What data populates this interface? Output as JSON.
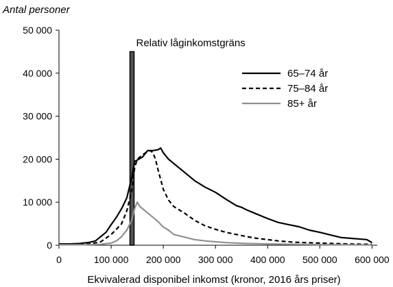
{
  "chart_data": {
    "type": "line",
    "title": "",
    "ylabel": "Antal personer",
    "xlabel": "Ekvivalerad disponibel inkomst (kronor, 2016 års priser)",
    "xlim": [
      0,
      610000
    ],
    "ylim": [
      0,
      50000
    ],
    "x_ticks": [
      0,
      100000,
      200000,
      300000,
      400000,
      500000,
      600000
    ],
    "x_tick_labels": [
      "0",
      "100 000",
      "200 000",
      "300 000",
      "400 000",
      "500 000",
      "600 000"
    ],
    "y_ticks": [
      0,
      10000,
      20000,
      30000,
      40000,
      50000
    ],
    "y_tick_labels": [
      "0",
      "10 000",
      "20 000",
      "30 000",
      "40 000",
      "50 000"
    ],
    "grid": false,
    "legend_position": "top-right",
    "annotation": {
      "label": "Relativ låginkomstgräns",
      "x": 140000,
      "bar_top": 45000
    },
    "series": [
      {
        "name": "65–74 år",
        "color": "#000000",
        "dash": "solid",
        "x": [
          0,
          20000,
          40000,
          60000,
          70000,
          80000,
          90000,
          100000,
          110000,
          120000,
          130000,
          135000,
          140000,
          145000,
          150000,
          160000,
          170000,
          175000,
          180000,
          190000,
          195000,
          200000,
          210000,
          220000,
          240000,
          260000,
          280000,
          300000,
          320000,
          340000,
          350000,
          360000,
          380000,
          400000,
          420000,
          440000,
          460000,
          480000,
          500000,
          520000,
          540000,
          560000,
          580000,
          590000,
          600000
        ],
        "y": [
          300,
          300,
          400,
          700,
          1000,
          2000,
          3000,
          4800,
          6500,
          8500,
          11000,
          13500,
          16000,
          19500,
          19800,
          20500,
          22000,
          22000,
          22000,
          22200,
          22600,
          21500,
          20000,
          19000,
          17000,
          15000,
          13500,
          12300,
          10700,
          9200,
          8800,
          8200,
          7200,
          6200,
          5300,
          4800,
          4300,
          3500,
          3000,
          2400,
          1800,
          1600,
          1400,
          1300,
          600
        ]
      },
      {
        "name": "75–84 år",
        "color": "#000000",
        "dash": "dashed",
        "x": [
          0,
          20000,
          40000,
          60000,
          80000,
          100000,
          110000,
          120000,
          130000,
          140000,
          145000,
          150000,
          160000,
          170000,
          175000,
          180000,
          185000,
          190000,
          200000,
          210000,
          220000,
          240000,
          260000,
          280000,
          300000,
          320000,
          340000,
          360000,
          380000,
          400000,
          420000,
          450000,
          500000,
          550000,
          600000
        ],
        "y": [
          100,
          100,
          200,
          300,
          800,
          2500,
          3700,
          5000,
          8000,
          13000,
          18000,
          20000,
          21000,
          21800,
          22000,
          21500,
          20000,
          17500,
          13000,
          10500,
          9000,
          7500,
          5800,
          4500,
          3700,
          3000,
          2500,
          2000,
          1600,
          1300,
          1000,
          700,
          500,
          300,
          200
        ]
      },
      {
        "name": "85+ år",
        "color": "#909090",
        "dash": "solid",
        "x": [
          0,
          50000,
          80000,
          100000,
          110000,
          120000,
          130000,
          140000,
          145000,
          150000,
          155000,
          160000,
          170000,
          180000,
          190000,
          200000,
          210000,
          220000,
          240000,
          260000,
          280000,
          300000,
          320000,
          340000,
          360000,
          400000,
          450000,
          500000,
          550000,
          600000
        ],
        "y": [
          100,
          100,
          200,
          500,
          1000,
          2000,
          3500,
          6000,
          8500,
          10000,
          9000,
          8500,
          7500,
          6500,
          5500,
          4200,
          3500,
          2500,
          1900,
          1300,
          1000,
          800,
          600,
          500,
          400,
          300,
          200,
          150,
          100,
          50
        ]
      }
    ]
  }
}
